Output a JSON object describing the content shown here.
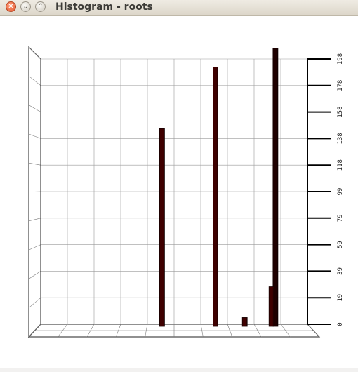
{
  "window": {
    "title": "Histogram - roots",
    "close_glyph": "✕",
    "minimize_glyph": "⌄",
    "maximize_glyph": "⌃"
  },
  "chart_data": {
    "type": "bar",
    "style": "3d-histogram",
    "grid": true,
    "ylim": [
      0,
      198
    ],
    "yticks": [
      "0",
      "19",
      "39",
      "59",
      "79",
      "99",
      "118",
      "138",
      "158",
      "178",
      "198"
    ],
    "bars": [
      {
        "x": 0.455,
        "value": 146,
        "color": "#3f0000"
      },
      {
        "x": 0.655,
        "value": 192,
        "color": "#3f0000"
      },
      {
        "x": 0.765,
        "value": 5,
        "color": "#3f0000"
      },
      {
        "x": 0.88,
        "value": 206,
        "color": "#1e0000"
      },
      {
        "x": 0.865,
        "value": 28,
        "color": "#3f0000"
      }
    ]
  }
}
